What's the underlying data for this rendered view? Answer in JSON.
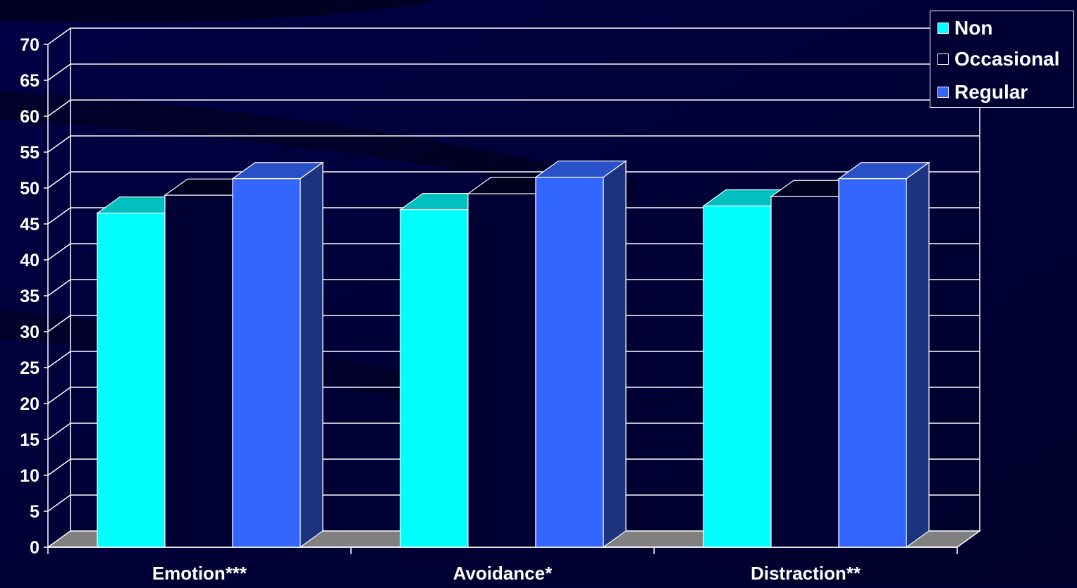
{
  "chart_data": {
    "type": "bar",
    "categories": [
      "Emotion***",
      "Avoidance*",
      "Distraction**"
    ],
    "series": [
      {
        "name": "Non",
        "values": [
          46.5,
          47,
          47.5
        ],
        "color": "#00FFFF",
        "top_color": "#00BFBF",
        "side_color": "#009999"
      },
      {
        "name": "Occasional",
        "values": [
          49,
          49.2,
          48.8
        ],
        "color": "#000033",
        "top_color": "#00001F",
        "side_color": "#00001A"
      },
      {
        "name": "Regular",
        "values": [
          51.3,
          51.5,
          51.3
        ],
        "color": "#3366FF",
        "top_color": "#2A52C8",
        "side_color": "#1C3480"
      }
    ],
    "yticks": [
      "0",
      "5",
      "10",
      "15",
      "20",
      "25",
      "30",
      "35",
      "40",
      "45",
      "50",
      "55",
      "60",
      "65",
      "70"
    ],
    "ylim": [
      0,
      70
    ],
    "grid": true,
    "legend_position": "top-right",
    "title": "",
    "xlabel": "",
    "ylabel": ""
  }
}
